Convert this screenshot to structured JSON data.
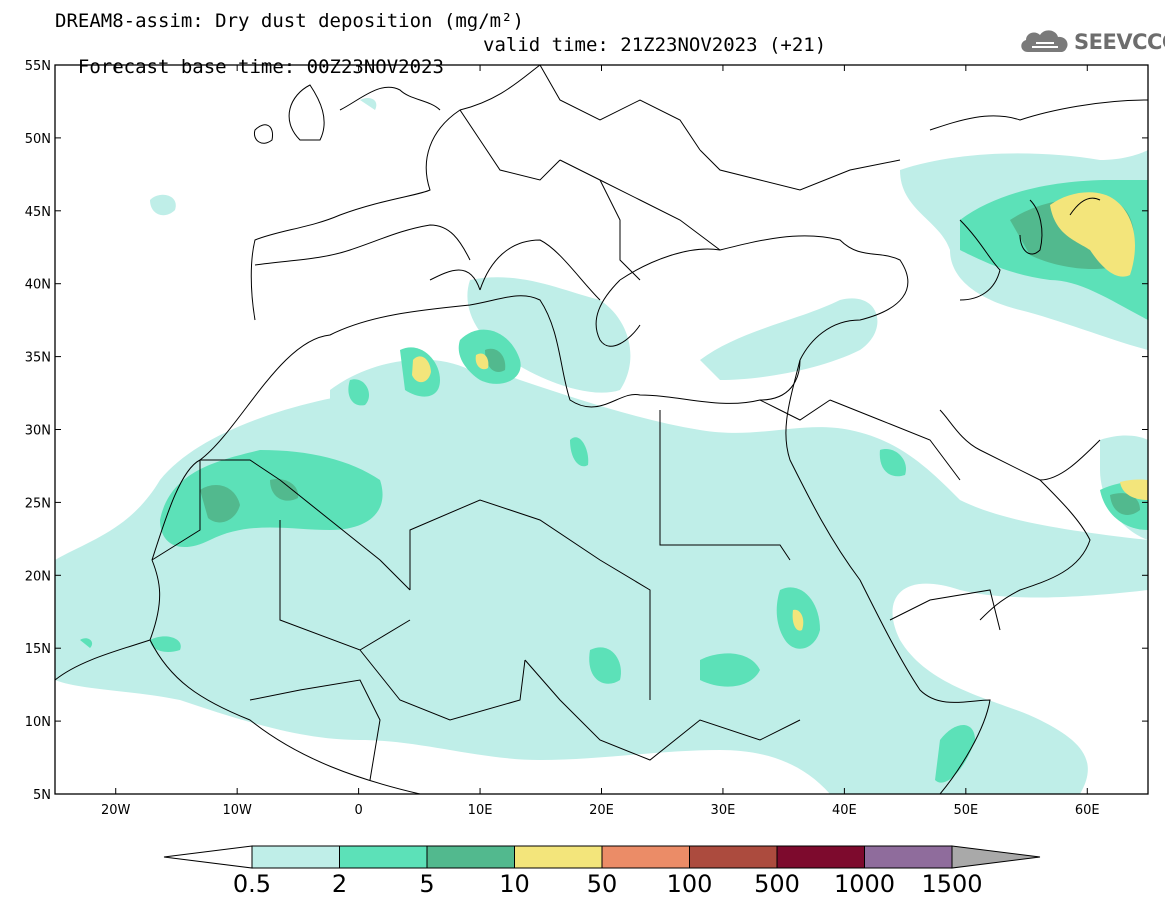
{
  "header": {
    "title_line1": "DREAM8-assim: Dry dust deposition (mg/m²)",
    "forecast_base": "Forecast base time: 00Z23NOV2023",
    "valid_time": "valid time: 21Z23NOV2023 (+21)"
  },
  "logo": {
    "text": "SEEVCCC",
    "icon": "cloud-logo-icon",
    "color": "#6d6d6d"
  },
  "map": {
    "projection": "lat-lon",
    "lon_range": [
      -25,
      65
    ],
    "lat_range": [
      5,
      55
    ],
    "lat_ticks": [
      {
        "value": 55,
        "label": "55N"
      },
      {
        "value": 50,
        "label": "50N"
      },
      {
        "value": 45,
        "label": "45N"
      },
      {
        "value": 40,
        "label": "40N"
      },
      {
        "value": 35,
        "label": "35N"
      },
      {
        "value": 30,
        "label": "30N"
      },
      {
        "value": 25,
        "label": "25N"
      },
      {
        "value": 20,
        "label": "20N"
      },
      {
        "value": 15,
        "label": "15N"
      },
      {
        "value": 10,
        "label": "10N"
      },
      {
        "value": 5,
        "label": "5N"
      }
    ],
    "lon_ticks": [
      {
        "value": -20,
        "label": "20W"
      },
      {
        "value": -10,
        "label": "10W"
      },
      {
        "value": 0,
        "label": "0"
      },
      {
        "value": 10,
        "label": "10E"
      },
      {
        "value": 20,
        "label": "20E"
      },
      {
        "value": 30,
        "label": "30E"
      },
      {
        "value": 40,
        "label": "40E"
      },
      {
        "value": 50,
        "label": "50E"
      },
      {
        "value": 60,
        "label": "60E"
      }
    ]
  },
  "colorbar": {
    "levels": [
      "0.5",
      "2",
      "5",
      "10",
      "50",
      "100",
      "500",
      "1000",
      "1500"
    ],
    "colors": [
      "#bfeee8",
      "#5ce1b8",
      "#52b98e",
      "#f3e57b",
      "#eb8c67",
      "#ac4b3e",
      "#7d0a2d",
      "#8f6c9c"
    ],
    "over_color": "#a9a9a9",
    "under_color": "#ffffff"
  }
}
